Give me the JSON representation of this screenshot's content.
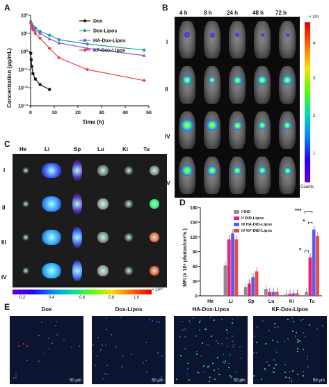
{
  "panel_labels": {
    "a": "A",
    "b": "B",
    "c": "C",
    "d": "D",
    "e": "E"
  },
  "chart_data": [
    {
      "type": "line",
      "xlabel": "Time (h)",
      "ylabel": "Concentration (μg/mL)",
      "xlim": [
        0,
        50
      ],
      "ylim_log": [
        -3,
        2
      ],
      "x_ticks": [
        "0",
        "10",
        "20",
        "30",
        "40",
        "50"
      ],
      "y_ticks": [
        "10⁻³",
        "10⁻²",
        "10⁻¹",
        "10⁰",
        "10¹",
        "10²"
      ],
      "series": [
        {
          "name": "Dox",
          "color": "#111111",
          "x": [
            0.08,
            0.25,
            0.5,
            1,
            2,
            4,
            8
          ],
          "y": [
            0.8,
            0.35,
            0.15,
            0.06,
            0.03,
            0.015,
            0.008
          ]
        },
        {
          "name": "Dox-Lipos",
          "color": "#1a9c96",
          "x": [
            0.08,
            0.5,
            1,
            2,
            4,
            8,
            12,
            24,
            48
          ],
          "y": [
            45,
            32,
            25,
            20,
            13,
            8,
            4.5,
            2.6,
            1.2
          ]
        },
        {
          "name": "HA-Dox-Lipos",
          "color": "#8a4fe0",
          "x": [
            0.08,
            0.5,
            1,
            2,
            4,
            8,
            12,
            24,
            48
          ],
          "y": [
            40,
            28,
            22,
            15,
            10,
            5,
            3,
            1.5,
            0.6
          ]
        },
        {
          "name": "KF-Dox-Lipos",
          "color": "#e8403f",
          "x": [
            0.08,
            0.5,
            1,
            2,
            4,
            8,
            12,
            24,
            48
          ],
          "y": [
            35,
            22,
            16,
            10,
            5.5,
            1.5,
            0.45,
            0.1,
            0.025
          ]
        }
      ]
    },
    {
      "type": "bar",
      "ylabel": "MFI (× 10⁸ photon/cm²/s )",
      "categories": [
        "He",
        "Li",
        "Sp",
        "Lu",
        "Ki",
        "Tu"
      ],
      "ylim": [
        0,
        180
      ],
      "y_ticks": [
        "0",
        "30",
        "60",
        "90",
        "120",
        "150",
        "180"
      ],
      "series": [
        {
          "name": "I DiD",
          "color": "#8c8c8c",
          "values": [
            0,
            62,
            18,
            14,
            3,
            8
          ]
        },
        {
          "name": "II DiD-Lipos",
          "color": "#e8207a",
          "values": [
            0,
            115,
            25,
            8,
            4,
            78
          ]
        },
        {
          "name": "III HA-DiD-Lipos",
          "color": "#5b5be8",
          "values": [
            0,
            127,
            38,
            8,
            5,
            135
          ]
        },
        {
          "name": "IV KF-DiD-Lipos",
          "color": "#e84a4a",
          "values": [
            0,
            115,
            50,
            8,
            5,
            122
          ]
        }
      ],
      "significance": [
        "*",
        "*",
        "***"
      ]
    }
  ],
  "panel_b": {
    "times": [
      "4 h",
      "8 h",
      "24 h",
      "48 h",
      "72 h"
    ],
    "rows": [
      "I",
      "II",
      "IV",
      "IV"
    ],
    "colorbar_ticks": [
      "4",
      "3",
      "2",
      "1"
    ],
    "colorbar_unit": "× 10⁸",
    "colorbar_label": "Counts"
  },
  "panel_c": {
    "organs": [
      "He",
      "Li",
      "Sp",
      "Lu",
      "Ki",
      "Tu"
    ],
    "rows": [
      "I",
      "II",
      "III",
      "IV"
    ],
    "colorbar_ticks": [
      "0.2",
      "0.4",
      "0.6",
      "0.8",
      "1.0"
    ],
    "colorbar_unit": "× 10¹⁰"
  },
  "panel_e": {
    "titles": [
      "Dox",
      "Dox-Lipos",
      "HA-Dox-Lipos",
      "KF-Dox-Lipos"
    ],
    "scale_bar": "50 μm"
  }
}
